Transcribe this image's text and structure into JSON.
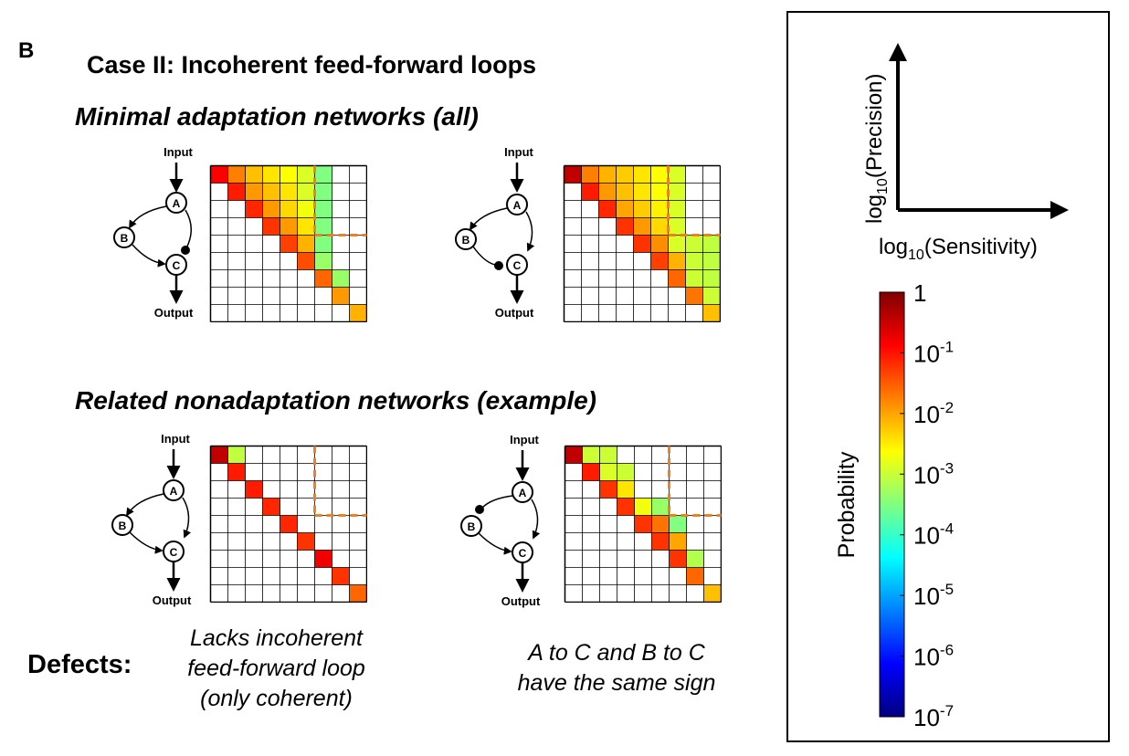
{
  "panel_letter": "B",
  "case_title": "Case II: Incoherent feed-forward loops",
  "minimal_title": {
    "prefix": "Minimal adaptation networks (",
    "emph": "all",
    "suffix": ")"
  },
  "related_title": "Related nonadaptation networks (example)",
  "node_labels": {
    "input": "Input",
    "output": "Output",
    "a": "A",
    "b": "B",
    "c": "C"
  },
  "defects_label": "Defects:",
  "defect_1": [
    "Lacks incoherent",
    "feed-forward loop",
    "(only coherent)"
  ],
  "defect_2": [
    "A to C and B to C",
    "have the same sign"
  ],
  "axes_key": {
    "x_label_pre": "log",
    "x_label_sub": "10",
    "x_label_post": "(Sensitivity)",
    "y_label_pre": "log",
    "y_label_sub": "10",
    "y_label_post": "(Precision)"
  },
  "colorbar": {
    "label": "Probability",
    "ticks": [
      {
        "base": "1",
        "exp": ""
      },
      {
        "base": "10",
        "exp": "-1"
      },
      {
        "base": "10",
        "exp": "-2"
      },
      {
        "base": "10",
        "exp": "-3"
      },
      {
        "base": "10",
        "exp": "-4"
      },
      {
        "base": "10",
        "exp": "-5"
      },
      {
        "base": "10",
        "exp": "-6"
      },
      {
        "base": "10",
        "exp": "-7"
      }
    ],
    "colors": [
      "#800000",
      "#ff0000",
      "#ff8000",
      "#ffff00",
      "#80ff80",
      "#00ffff",
      "#0080ff",
      "#0000ff",
      "#000080"
    ]
  },
  "matrices": [
    {
      "name": "minimal-1",
      "cells": [
        [
          0,
          0,
          1
        ],
        [
          0,
          1,
          2
        ],
        [
          0,
          2,
          2.5
        ],
        [
          0,
          3,
          2.8
        ],
        [
          0,
          4,
          3
        ],
        [
          0,
          5,
          3.3
        ],
        [
          0,
          6,
          4
        ],
        [
          1,
          1,
          1.2
        ],
        [
          1,
          2,
          2.2
        ],
        [
          1,
          3,
          2.5
        ],
        [
          1,
          4,
          2.8
        ],
        [
          1,
          5,
          3.3
        ],
        [
          1,
          6,
          4
        ],
        [
          2,
          2,
          1.3
        ],
        [
          2,
          3,
          2.2
        ],
        [
          2,
          4,
          2.7
        ],
        [
          2,
          5,
          3.1
        ],
        [
          2,
          6,
          4
        ],
        [
          3,
          3,
          1.4
        ],
        [
          3,
          4,
          2.2
        ],
        [
          3,
          5,
          2.8
        ],
        [
          3,
          6,
          4
        ],
        [
          4,
          4,
          1.5
        ],
        [
          4,
          5,
          2.4
        ],
        [
          4,
          6,
          4
        ],
        [
          5,
          5,
          1.6
        ],
        [
          5,
          6,
          3.8
        ],
        [
          6,
          6,
          1.8
        ],
        [
          6,
          7,
          3.8
        ],
        [
          7,
          7,
          2.2
        ],
        [
          8,
          8,
          2.4
        ]
      ]
    },
    {
      "name": "minimal-2",
      "cells": [
        [
          0,
          0,
          0.5
        ],
        [
          0,
          1,
          2
        ],
        [
          0,
          2,
          2.4
        ],
        [
          0,
          3,
          2.6
        ],
        [
          0,
          4,
          2.8
        ],
        [
          0,
          5,
          3
        ],
        [
          0,
          6,
          3.3
        ],
        [
          1,
          1,
          1.2
        ],
        [
          1,
          2,
          2.2
        ],
        [
          1,
          3,
          2.5
        ],
        [
          1,
          4,
          2.8
        ],
        [
          1,
          5,
          3
        ],
        [
          1,
          6,
          3.3
        ],
        [
          2,
          2,
          1.3
        ],
        [
          2,
          3,
          2.3
        ],
        [
          2,
          4,
          2.6
        ],
        [
          2,
          5,
          2.9
        ],
        [
          2,
          6,
          3.3
        ],
        [
          3,
          3,
          1.4
        ],
        [
          3,
          4,
          2.2
        ],
        [
          3,
          5,
          2.7
        ],
        [
          3,
          6,
          3.3
        ],
        [
          4,
          4,
          1.4
        ],
        [
          4,
          5,
          2.1
        ],
        [
          4,
          6,
          3.3
        ],
        [
          4,
          7,
          3.4
        ],
        [
          4,
          8,
          3.5
        ],
        [
          5,
          5,
          1.5
        ],
        [
          5,
          6,
          2.4
        ],
        [
          5,
          7,
          3.4
        ],
        [
          5,
          8,
          3.5
        ],
        [
          6,
          6,
          1.8
        ],
        [
          6,
          7,
          3.4
        ],
        [
          6,
          8,
          3.5
        ],
        [
          7,
          7,
          1.9
        ],
        [
          7,
          8,
          3.4
        ],
        [
          8,
          8,
          2.5
        ]
      ]
    },
    {
      "name": "related-1",
      "cells": [
        [
          0,
          0,
          0.5
        ],
        [
          0,
          1,
          3.5
        ],
        [
          1,
          1,
          1.2
        ],
        [
          2,
          2,
          1.2
        ],
        [
          3,
          3,
          1.3
        ],
        [
          4,
          4,
          1.3
        ],
        [
          5,
          5,
          1.4
        ],
        [
          6,
          6,
          0.9
        ],
        [
          7,
          7,
          1.4
        ],
        [
          8,
          8,
          1.8
        ]
      ]
    },
    {
      "name": "related-2",
      "cells": [
        [
          0,
          0,
          0.5
        ],
        [
          0,
          1,
          3.4
        ],
        [
          0,
          2,
          3.4
        ],
        [
          1,
          1,
          1.2
        ],
        [
          1,
          2,
          3.3
        ],
        [
          1,
          3,
          3.4
        ],
        [
          2,
          2,
          1.4
        ],
        [
          2,
          3,
          2.8
        ],
        [
          3,
          3,
          1.4
        ],
        [
          3,
          4,
          3.1
        ],
        [
          3,
          5,
          3.8
        ],
        [
          4,
          4,
          1.4
        ],
        [
          4,
          5,
          1.9
        ],
        [
          4,
          6,
          4
        ],
        [
          5,
          5,
          1.4
        ],
        [
          5,
          6,
          2.3
        ],
        [
          6,
          6,
          1.4
        ],
        [
          6,
          7,
          3.6
        ],
        [
          7,
          7,
          1.8
        ],
        [
          8,
          8,
          2.5
        ]
      ]
    }
  ]
}
